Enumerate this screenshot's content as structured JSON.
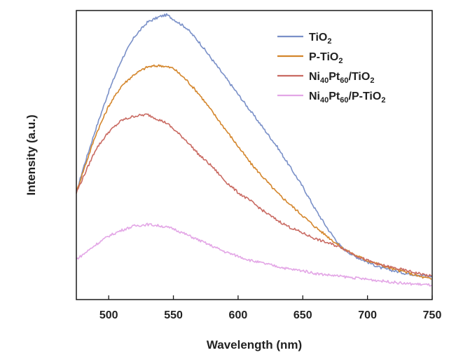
{
  "chart_data": {
    "type": "line",
    "xlabel": "Wavelength (nm)",
    "ylabel": "Intensity (a.u.)",
    "xlim": [
      475,
      750
    ],
    "ylim": [
      0,
      100
    ],
    "x_ticks": [
      500,
      550,
      600,
      650,
      700,
      750
    ],
    "y_ticks_shown": false,
    "legend_position": "top-right",
    "x": [
      475,
      480,
      490,
      500,
      510,
      520,
      530,
      540,
      545,
      550,
      560,
      570,
      580,
      590,
      600,
      610,
      620,
      630,
      640,
      650,
      660,
      670,
      680,
      690,
      700,
      710,
      720,
      730,
      740,
      750
    ],
    "series": [
      {
        "name": "TiO2",
        "label_main": "TiO",
        "label_sub": "2",
        "label_tail": "",
        "color": "#7a90c8",
        "values": [
          37,
          45,
          59,
          72,
          83,
          91,
          96,
          98,
          98.5,
          97,
          94,
          89,
          83,
          77,
          71,
          65,
          59,
          53,
          46,
          39,
          31,
          24,
          18,
          15,
          13,
          11,
          10,
          9,
          8.5,
          8
        ]
      },
      {
        "name": "P-TiO2",
        "label_main": "P-TiO",
        "label_sub": "2",
        "label_tail": "",
        "color": "#d4862c",
        "values": [
          37,
          44,
          57,
          67,
          74,
          78,
          80.5,
          81,
          80.5,
          80,
          76,
          71,
          65,
          59,
          53,
          47,
          42,
          37,
          33,
          29,
          25,
          21.5,
          18,
          15.5,
          13.5,
          12,
          10.5,
          9.5,
          8,
          7
        ]
      },
      {
        "name": "Ni40Pt60/TiO2",
        "label_main": "Ni",
        "label_sub": "40",
        "label_tail": "Pt|60|/TiO|2",
        "color": "#c96a62",
        "values": [
          37,
          42,
          52,
          58,
          62,
          63.5,
          64,
          62,
          61,
          59,
          55,
          50,
          46,
          41,
          37,
          34,
          30.5,
          27.5,
          25,
          23,
          21,
          19.5,
          18,
          15.5,
          13.5,
          12,
          11,
          10,
          9,
          8
        ]
      },
      {
        "name": "Ni40Pt60/P-TiO2",
        "label_main": "Ni",
        "label_sub": "40",
        "label_tail": "Pt|60|/P-TiO|2",
        "color": "#e3a6e6",
        "values": [
          14,
          15.5,
          19,
          22,
          24,
          25.5,
          26,
          25.5,
          25,
          24.5,
          22.5,
          20.5,
          18.5,
          16.5,
          15,
          13.5,
          12.5,
          11.5,
          10.5,
          10,
          9,
          8.5,
          8,
          7.5,
          7,
          6.5,
          6,
          5.5,
          5.3,
          5
        ]
      }
    ]
  }
}
